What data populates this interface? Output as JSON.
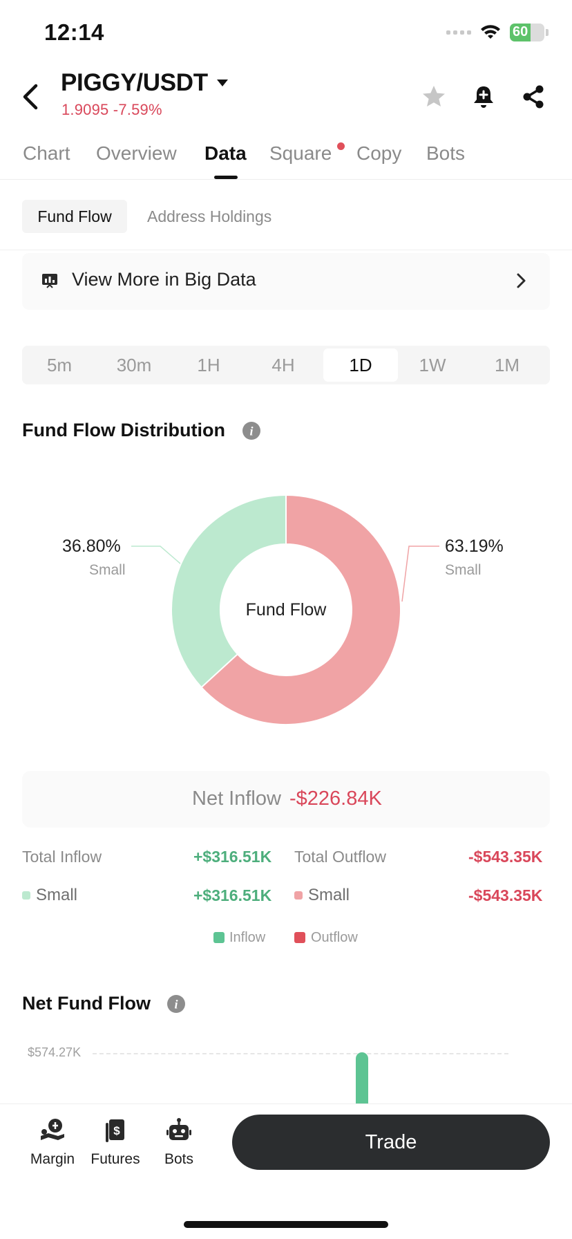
{
  "status_bar": {
    "time": "12:14",
    "battery": "60",
    "battery_level": 0.6
  },
  "header": {
    "pair": "PIGGY/USDT",
    "price_change": "1.9095 -7.59%",
    "icons": [
      "back-icon",
      "caret-down-icon",
      "star-icon",
      "bell-add-icon",
      "share-icon"
    ]
  },
  "tabs": [
    {
      "label": "Chart"
    },
    {
      "label": "Overview"
    },
    {
      "label": "Data",
      "active": true
    },
    {
      "label": "Square",
      "badge": true
    },
    {
      "label": "Copy"
    },
    {
      "label": "Bots"
    }
  ],
  "subtabs": {
    "fund_flow": "Fund Flow",
    "address_holdings": "Address Holdings"
  },
  "big_data": {
    "label": "View More in Big Data"
  },
  "timeframes": [
    "5m",
    "30m",
    "1H",
    "4H",
    "1D",
    "1W",
    "1M"
  ],
  "timeframe_selected": "1D",
  "distribution": {
    "title": "Fund Flow Distribution",
    "center_label": "Fund Flow",
    "left_pct": "36.80%",
    "left_sub": "Small",
    "right_pct": "63.19%",
    "right_sub": "Small"
  },
  "net": {
    "label": "Net Inflow",
    "value": "-$226.84K"
  },
  "totals": {
    "inflow_label": "Total Inflow",
    "inflow_value": "+$316.51K",
    "outflow_label": "Total Outflow",
    "outflow_value": "-$543.35K",
    "small_in_label": "Small",
    "small_in_value": "+$316.51K",
    "small_out_label": "Small",
    "small_out_value": "-$543.35K"
  },
  "legend": {
    "inflow": "Inflow",
    "outflow": "Outflow"
  },
  "net_fund_flow": {
    "title": "Net Fund Flow",
    "axis_max": "$574.27K"
  },
  "bottom_nav": {
    "margin": "Margin",
    "futures": "Futures",
    "bots": "Bots",
    "trade": "Trade"
  },
  "colors": {
    "inflow": "#bce9cf",
    "outflow": "#f0a3a5",
    "positive": "#4dae7c",
    "negative": "#d9475a",
    "legend_inflow": "#5dc493",
    "legend_outflow": "#e0505a"
  },
  "chart_data": {
    "type": "pie",
    "categories": [
      "Inflow (Small)",
      "Outflow (Small)"
    ],
    "values": [
      36.8,
      63.19
    ],
    "title": "Fund Flow Distribution",
    "center_label": "Fund Flow"
  }
}
